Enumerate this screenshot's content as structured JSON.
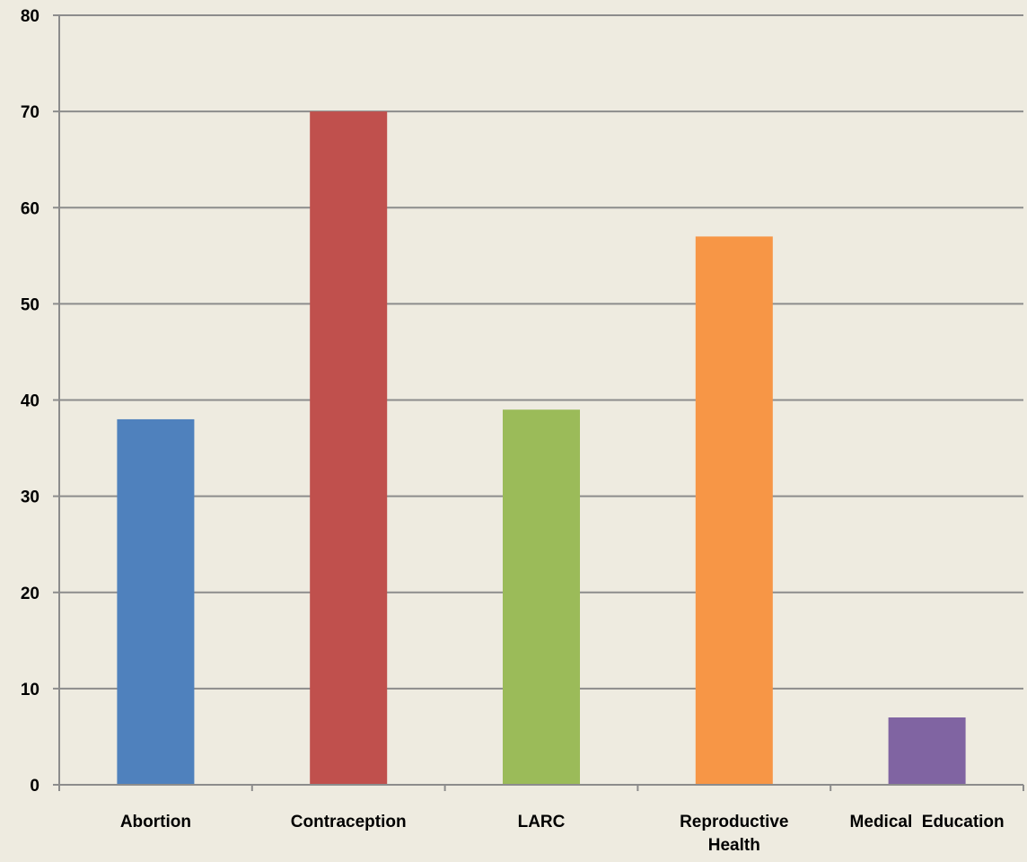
{
  "chart_data": {
    "type": "bar",
    "title": "",
    "xlabel": "",
    "ylabel": "",
    "ylim": [
      0,
      80
    ],
    "yticks": [
      0,
      10,
      20,
      30,
      40,
      50,
      60,
      70,
      80
    ],
    "grid": true,
    "legend": "none",
    "categories": [
      [
        "Abortion"
      ],
      [
        "Contraception"
      ],
      [
        "LARC"
      ],
      [
        "Reproductive",
        "Health"
      ],
      [
        "Medical  Education"
      ]
    ],
    "values": [
      38,
      70,
      39,
      57,
      7
    ],
    "colors": [
      "#4f81bd",
      "#c0504d",
      "#9bbb59",
      "#f79646",
      "#8064a2"
    ]
  },
  "style": {
    "background": "#eeebe0",
    "grid_color": "#8c8c8c",
    "axis_color": "#8c8c8c"
  }
}
